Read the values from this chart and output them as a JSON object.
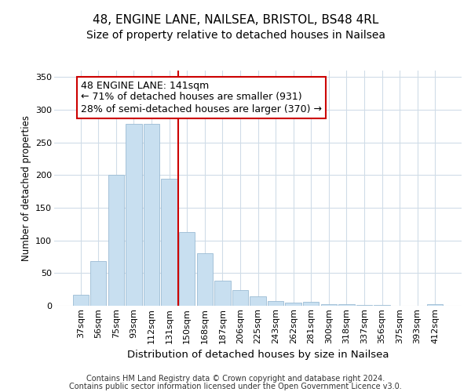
{
  "title1": "48, ENGINE LANE, NAILSEA, BRISTOL, BS48 4RL",
  "title2": "Size of property relative to detached houses in Nailsea",
  "xlabel": "Distribution of detached houses by size in Nailsea",
  "ylabel": "Number of detached properties",
  "footer1": "Contains HM Land Registry data © Crown copyright and database right 2024.",
  "footer2": "Contains public sector information licensed under the Open Government Licence v3.0.",
  "categories": [
    "37sqm",
    "56sqm",
    "75sqm",
    "93sqm",
    "112sqm",
    "131sqm",
    "150sqm",
    "168sqm",
    "187sqm",
    "206sqm",
    "225sqm",
    "243sqm",
    "262sqm",
    "281sqm",
    "300sqm",
    "318sqm",
    "337sqm",
    "356sqm",
    "375sqm",
    "393sqm",
    "412sqm"
  ],
  "values": [
    17,
    68,
    200,
    278,
    278,
    195,
    113,
    80,
    39,
    24,
    14,
    7,
    5,
    6,
    3,
    2,
    1,
    1,
    0,
    0,
    2
  ],
  "bar_color": "#c8dff0",
  "bar_edge_color": "#9bbbd4",
  "vline_x": 5.5,
  "vline_color": "#cc0000",
  "annotation_text": "48 ENGINE LANE: 141sqm\n← 71% of detached houses are smaller (931)\n28% of semi-detached houses are larger (370) →",
  "annotation_box_color": "white",
  "annotation_box_edge_color": "#cc0000",
  "ylim": [
    0,
    360
  ],
  "yticks": [
    0,
    50,
    100,
    150,
    200,
    250,
    300,
    350
  ],
  "bg_color": "#ffffff",
  "plot_bg_color": "#ffffff",
  "grid_color": "#d0dce8",
  "title1_fontsize": 11,
  "title2_fontsize": 10,
  "xlabel_fontsize": 9.5,
  "ylabel_fontsize": 8.5,
  "tick_fontsize": 8,
  "footer_fontsize": 7,
  "ann_fontsize": 9
}
